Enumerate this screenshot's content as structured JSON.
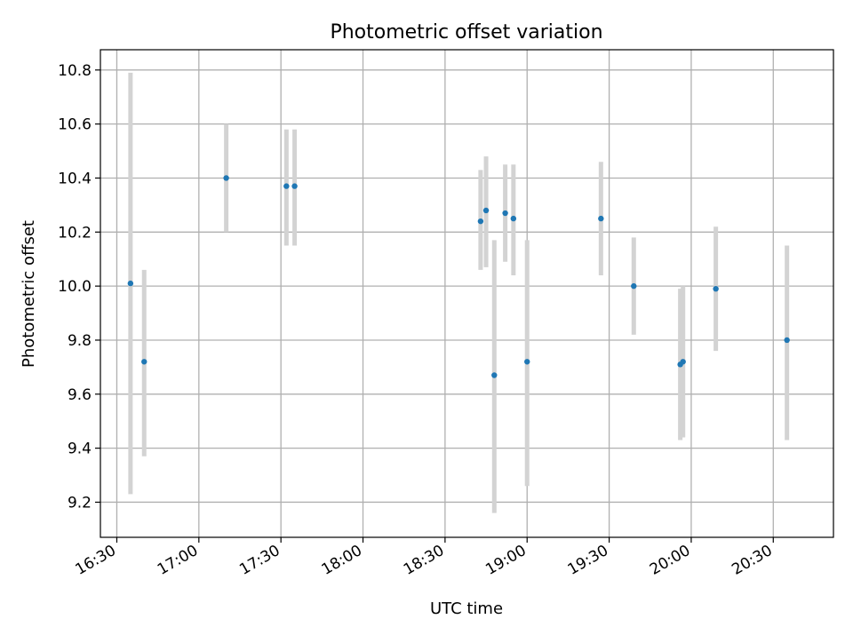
{
  "chart_data": {
    "type": "scatter",
    "title": "Photometric offset variation",
    "xlabel": "UTC time",
    "ylabel": "Photometric offset",
    "xlim": [
      "16:24",
      "20:52"
    ],
    "ylim": [
      9.07,
      10.875
    ],
    "xticks": [
      "16:30",
      "17:00",
      "17:30",
      "18:00",
      "18:30",
      "19:00",
      "19:30",
      "20:00",
      "20:30"
    ],
    "yticks": [
      "9.2",
      "9.4",
      "9.6",
      "9.8",
      "10.0",
      "10.2",
      "10.4",
      "10.6",
      "10.8"
    ],
    "grid": true,
    "point_color": "#1f77b4",
    "errorbar_color": "#d3d3d3",
    "points": [
      {
        "x": "16:35",
        "y": 10.01,
        "ylo": 9.23,
        "yhi": 10.79
      },
      {
        "x": "16:40",
        "y": 9.72,
        "ylo": 9.37,
        "yhi": 10.06
      },
      {
        "x": "17:10",
        "y": 10.4,
        "ylo": 10.2,
        "yhi": 10.6
      },
      {
        "x": "17:32",
        "y": 10.37,
        "ylo": 10.15,
        "yhi": 10.58
      },
      {
        "x": "17:35",
        "y": 10.37,
        "ylo": 10.15,
        "yhi": 10.58
      },
      {
        "x": "18:43",
        "y": 10.24,
        "ylo": 10.06,
        "yhi": 10.43
      },
      {
        "x": "18:45",
        "y": 10.28,
        "ylo": 10.07,
        "yhi": 10.48
      },
      {
        "x": "18:48",
        "y": 9.67,
        "ylo": 9.16,
        "yhi": 10.17
      },
      {
        "x": "18:52",
        "y": 10.27,
        "ylo": 10.09,
        "yhi": 10.45
      },
      {
        "x": "18:55",
        "y": 10.25,
        "ylo": 10.04,
        "yhi": 10.45
      },
      {
        "x": "19:00",
        "y": 9.72,
        "ylo": 9.26,
        "yhi": 10.17
      },
      {
        "x": "19:27",
        "y": 10.25,
        "ylo": 10.04,
        "yhi": 10.46
      },
      {
        "x": "19:39",
        "y": 10.0,
        "ylo": 9.82,
        "yhi": 10.18
      },
      {
        "x": "19:56",
        "y": 9.71,
        "ylo": 9.43,
        "yhi": 9.99
      },
      {
        "x": "19:57",
        "y": 9.72,
        "ylo": 9.44,
        "yhi": 10.0
      },
      {
        "x": "20:09",
        "y": 9.99,
        "ylo": 9.76,
        "yhi": 10.22
      },
      {
        "x": "20:35",
        "y": 9.8,
        "ylo": 9.43,
        "yhi": 10.15
      }
    ]
  }
}
